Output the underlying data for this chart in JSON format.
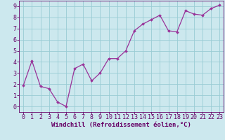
{
  "x": [
    0,
    1,
    2,
    3,
    4,
    5,
    6,
    7,
    8,
    9,
    10,
    11,
    12,
    13,
    14,
    15,
    16,
    17,
    18,
    19,
    20,
    21,
    22,
    23
  ],
  "y": [
    1.9,
    4.1,
    1.8,
    1.6,
    0.4,
    0.0,
    3.4,
    3.8,
    2.3,
    3.0,
    4.3,
    4.3,
    5.0,
    6.8,
    7.4,
    7.8,
    8.2,
    6.8,
    6.7,
    8.6,
    8.3,
    8.2,
    8.8,
    9.1
  ],
  "line_color": "#993399",
  "marker": "D",
  "marker_size": 2.0,
  "line_width": 0.9,
  "xlabel": "Windchill (Refroidissement éolien,°C)",
  "xlim": [
    -0.5,
    23.5
  ],
  "ylim": [
    -0.5,
    9.5
  ],
  "yticks": [
    0,
    1,
    2,
    3,
    4,
    5,
    6,
    7,
    8,
    9
  ],
  "xticks": [
    0,
    1,
    2,
    3,
    4,
    5,
    6,
    7,
    8,
    9,
    10,
    11,
    12,
    13,
    14,
    15,
    16,
    17,
    18,
    19,
    20,
    21,
    22,
    23
  ],
  "bg_color": "#cce8ee",
  "grid_color": "#99ccd4",
  "tick_color": "#660066",
  "label_color": "#660066",
  "font_size_xlabel": 6.5,
  "font_size_ticks": 6.0
}
